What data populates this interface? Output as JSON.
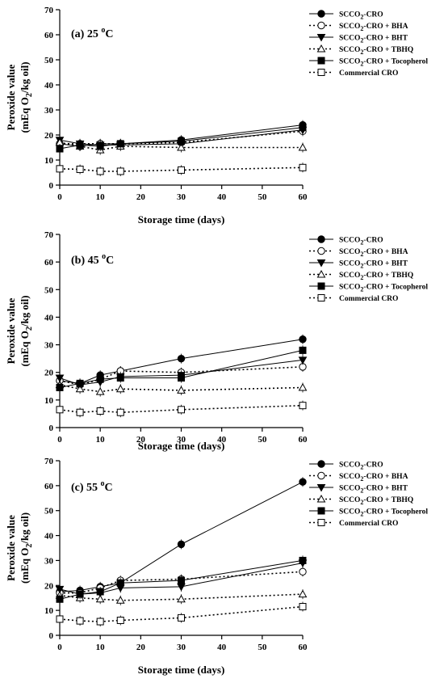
{
  "chart_data": [
    {
      "type": "line",
      "panel_label": "(a) 25 ",
      "panel_temp_sup": "o",
      "panel_temp_unit": "C",
      "xlabel": "Storage time (days)",
      "ylabel_line1": "Peroxide value",
      "ylabel_line2_a": "(mEq O",
      "ylabel_line2_sub": "2",
      "ylabel_line2_b": "/kg oil)",
      "xlim": [
        0,
        60
      ],
      "ylim": [
        0,
        70
      ],
      "xticks": [
        "0",
        "10",
        "20",
        "30",
        "40",
        "50",
        "60"
      ],
      "yticks": [
        "0",
        "10",
        "20",
        "30",
        "40",
        "50",
        "60",
        "70"
      ],
      "x": [
        0,
        5,
        10,
        15,
        30,
        60
      ],
      "series": [
        {
          "name": "SCCO2-CRO",
          "values": [
            16.5,
            15.5,
            16.5,
            16.5,
            18,
            24
          ]
        },
        {
          "name": "SCCO2-CRO + BHA",
          "values": [
            16.5,
            16.5,
            16.5,
            16.5,
            17,
            21.5
          ]
        },
        {
          "name": "SCCO2-CRO + BHT",
          "values": [
            18,
            16.5,
            16,
            16,
            16.5,
            22
          ]
        },
        {
          "name": "SCCO2-CRO + TBHQ",
          "values": [
            17,
            15.5,
            14,
            15.5,
            15,
            15
          ]
        },
        {
          "name": "SCCO2-CRO + Tocopherol",
          "values": [
            14.5,
            16,
            15.5,
            16.5,
            17.5,
            23
          ]
        },
        {
          "name": "Commercial CRO",
          "values": [
            6.5,
            6.3,
            5.5,
            5.5,
            6,
            7
          ]
        }
      ]
    },
    {
      "type": "line",
      "panel_label": "(b) 45 ",
      "panel_temp_sup": "o",
      "panel_temp_unit": "C",
      "xlabel": "Storage time (days)",
      "ylabel_line1": "Peroxide value",
      "ylabel_line2_a": "(mEq O",
      "ylabel_line2_sub": "2",
      "ylabel_line2_b": "/kg oil)",
      "xlim": [
        0,
        60
      ],
      "ylim": [
        0,
        70
      ],
      "xticks": [
        "0",
        "10",
        "20",
        "30",
        "40",
        "50",
        "60"
      ],
      "yticks": [
        "0",
        "10",
        "20",
        "30",
        "40",
        "50",
        "60",
        "70"
      ],
      "x": [
        0,
        5,
        10,
        15,
        30,
        60
      ],
      "series": [
        {
          "name": "SCCO2-CRO",
          "values": [
            17,
            16,
            19,
            20.5,
            25,
            32
          ]
        },
        {
          "name": "SCCO2-CRO + BHA",
          "values": [
            17,
            15.5,
            17.5,
            20.5,
            20,
            22
          ]
        },
        {
          "name": "SCCO2-CRO + BHT",
          "values": [
            18,
            15.5,
            16.5,
            18.5,
            19,
            24.5
          ]
        },
        {
          "name": "SCCO2-CRO + TBHQ",
          "values": [
            15.5,
            14,
            13,
            14,
            13.5,
            14.5
          ]
        },
        {
          "name": "SCCO2-CRO + Tocopherol",
          "values": [
            14.5,
            16,
            17.5,
            18,
            18,
            28
          ]
        },
        {
          "name": "Commercial CRO",
          "values": [
            6.5,
            5.5,
            6,
            5.5,
            6.5,
            8
          ]
        }
      ]
    },
    {
      "type": "line",
      "panel_label": "(c) 55 ",
      "panel_temp_sup": "o",
      "panel_temp_unit": "C",
      "xlabel": "Storage time (days)",
      "ylabel_line1": "Peroxide value",
      "ylabel_line2_a": "(mEq O",
      "ylabel_line2_sub": "2",
      "ylabel_line2_b": "/kg oil)",
      "xlim": [
        0,
        60
      ],
      "ylim": [
        0,
        70
      ],
      "xticks": [
        "0",
        "10",
        "20",
        "30",
        "40",
        "50",
        "60"
      ],
      "yticks": [
        "0",
        "10",
        "20",
        "30",
        "40",
        "50",
        "60",
        "70"
      ],
      "x": [
        0,
        5,
        10,
        15,
        30,
        60
      ],
      "series": [
        {
          "name": "SCCO2-CRO",
          "values": [
            17.5,
            18,
            19.5,
            21,
            36.5,
            61.5
          ]
        },
        {
          "name": "SCCO2-CRO + BHA",
          "values": [
            17,
            17,
            19,
            22,
            22.5,
            25.5
          ]
        },
        {
          "name": "SCCO2-CRO + BHT",
          "values": [
            18.5,
            16.5,
            17,
            19,
            19.5,
            29
          ]
        },
        {
          "name": "SCCO2-CRO + TBHQ",
          "values": [
            16,
            15,
            14.5,
            14,
            14.5,
            16.5
          ]
        },
        {
          "name": "SCCO2-CRO + Tocopherol",
          "values": [
            14.5,
            16.5,
            17.5,
            21,
            22,
            30
          ]
        },
        {
          "name": "Commercial CRO",
          "values": [
            6.5,
            5.8,
            5.5,
            6,
            7,
            11.5
          ]
        }
      ]
    }
  ],
  "legend": [
    {
      "pre": "SCCO",
      "sub": "2",
      "post": "-CRO",
      "marker": "filled-circle",
      "dash": "solid"
    },
    {
      "pre": "SCCO",
      "sub": "2",
      "post": "-CRO + BHA",
      "marker": "open-circle",
      "dash": "dotted"
    },
    {
      "pre": "SCCO",
      "sub": "2",
      "post": "-CRO + BHT",
      "marker": "filled-triangle-down",
      "dash": "solid"
    },
    {
      "pre": "SCCO",
      "sub": "2",
      "post": "-CRO + TBHQ",
      "marker": "open-triangle-up",
      "dash": "dotted"
    },
    {
      "pre": "SCCO",
      "sub": "2",
      "post": "-CRO + Tocopherol",
      "marker": "filled-square",
      "dash": "solid"
    },
    {
      "pre": "Commercial CRO",
      "sub": "",
      "post": "",
      "marker": "open-square",
      "dash": "dotted"
    }
  ]
}
